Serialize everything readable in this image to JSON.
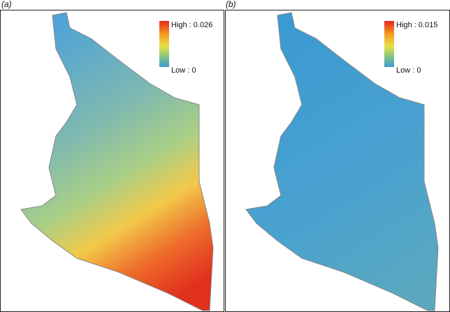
{
  "panels": [
    {
      "label": "(a)",
      "legend": {
        "high": "High : 0.026",
        "low": "Low : 0"
      }
    },
    {
      "label": "(b)",
      "legend": {
        "high": "High : 0.015",
        "low": "Low : 0"
      }
    }
  ]
}
